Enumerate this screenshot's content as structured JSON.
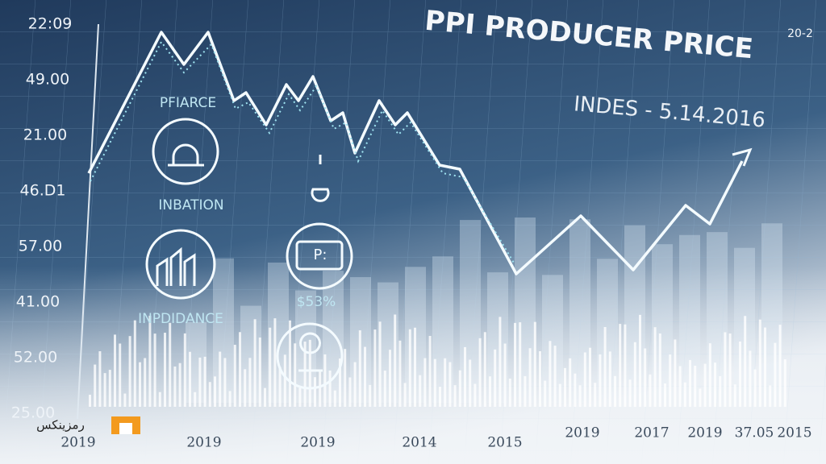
{
  "header": {
    "title": "PPI PRODUCER PRICE",
    "subtitle": "INDES - 5.14.2016",
    "corner": "20-2"
  },
  "y_labels": [
    "22:09",
    "49.00",
    "21.00",
    "46.D1",
    "57.00",
    "41.00",
    "52.00",
    "25.00"
  ],
  "x_labels": [
    "2019",
    "2019",
    "2019",
    "2014",
    "2015",
    "2019",
    "2017",
    "2019",
    "37.05",
    "2015"
  ],
  "icons": [
    "PFIARCE",
    "INBATION",
    "INPDIDANCE",
    "$53%"
  ],
  "logo": "رمزینکس"
}
